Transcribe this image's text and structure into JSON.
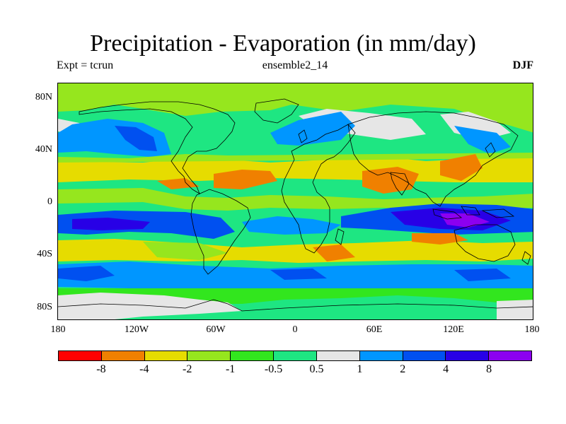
{
  "header": {
    "title": "Precipitation - Evaporation (in mm/day)",
    "left": "Expt = tcrun",
    "center": "ensemble2_14",
    "right": "DJF"
  },
  "axes": {
    "lat_labels": [
      "80N",
      "40N",
      "0",
      "40S",
      "80S"
    ],
    "lon_labels": [
      "180",
      "120W",
      "60W",
      "0",
      "60E",
      "120E",
      "180"
    ]
  },
  "colorbar": {
    "colors": [
      "#ff0000",
      "#f08000",
      "#e6dc00",
      "#96e61e",
      "#32e61e",
      "#1ee682",
      "#e6e6e6",
      "#0096ff",
      "#0050f0",
      "#2800e6",
      "#8c00f0"
    ],
    "labels": [
      "-8",
      "-4",
      "-2",
      "-1",
      "-0.5",
      "0.5",
      "1",
      "2",
      "4",
      "8"
    ]
  },
  "colors": {
    "background_field": "#1ee682",
    "coastline": "#000000"
  }
}
